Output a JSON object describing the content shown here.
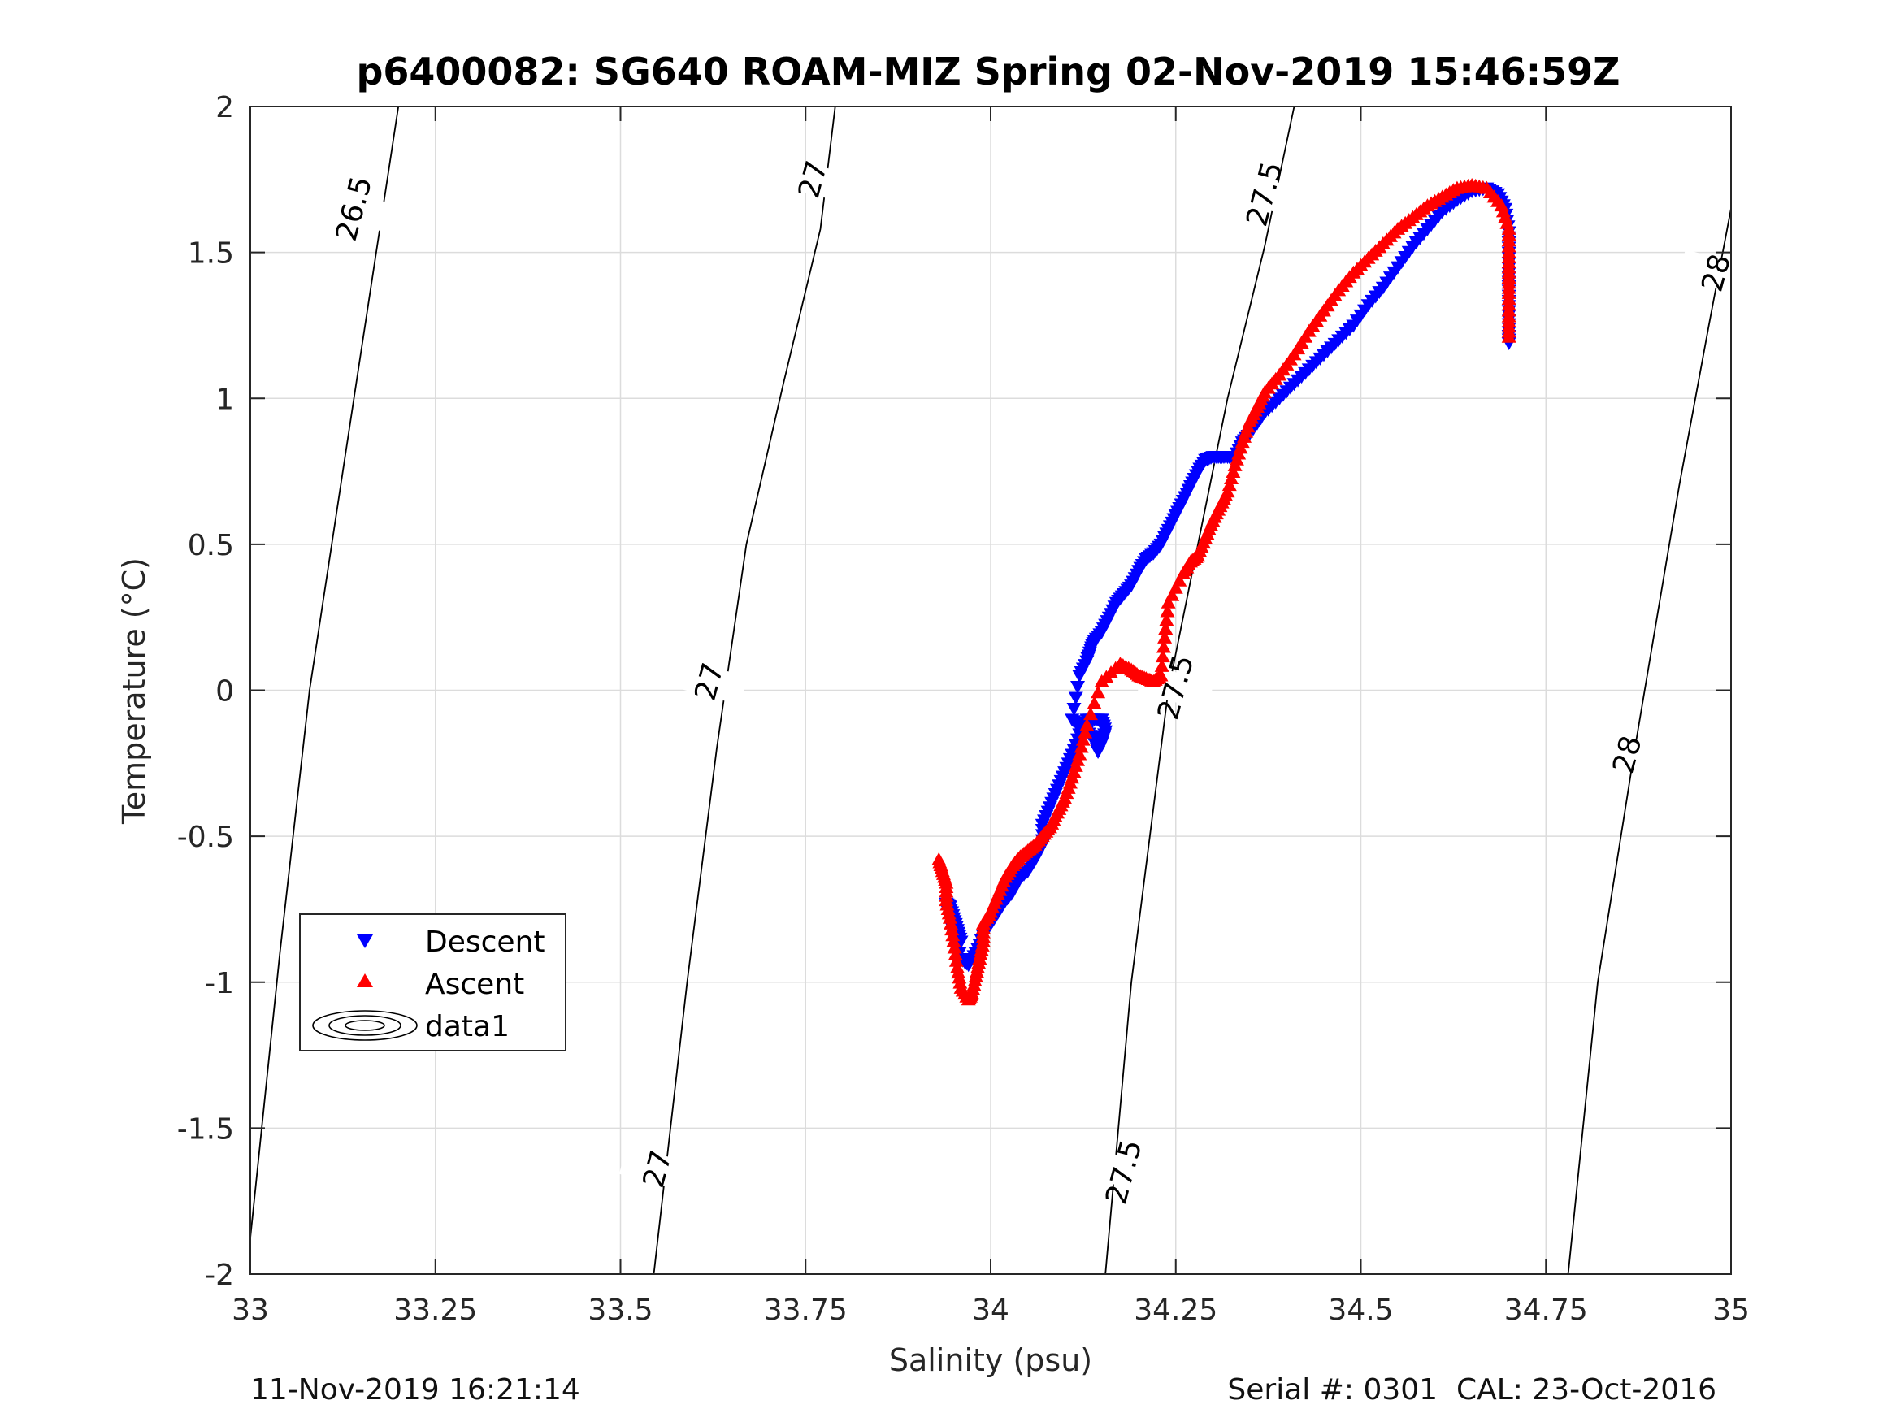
{
  "chart_data": {
    "type": "scatter",
    "title": "p6400082: SG640 ROAM-MIZ Spring 02-Nov-2019 15:46:59Z",
    "xlabel": "Salinity (psu)",
    "ylabel": "Temperature (°C)",
    "xlim": [
      33,
      35
    ],
    "ylim": [
      -2,
      2
    ],
    "xticks": [
      "33",
      "33.25",
      "33.5",
      "33.75",
      "34",
      "34.25",
      "34.5",
      "34.75",
      "35"
    ],
    "yticks": [
      "2",
      "1.5",
      "1",
      "0.5",
      "0",
      "-0.5",
      "-1",
      "-1.5",
      "-2"
    ],
    "grid": true,
    "legend_position": "lower-left",
    "legend": [
      "Descent",
      "Ascent",
      "data1"
    ],
    "colors": {
      "descent": "#0000ff",
      "ascent": "#ff0000",
      "contour": "#000000",
      "grid": "#dcdcdc"
    },
    "density_contours": [
      {
        "sigma": "26.5",
        "points": [
          [
            32.995,
            -2.0
          ],
          [
            33.04,
            -0.9
          ],
          [
            33.08,
            0.0
          ],
          [
            33.14,
            1.0
          ],
          [
            33.17,
            1.5
          ],
          [
            33.2,
            2.0
          ]
        ]
      },
      {
        "sigma": "27",
        "points": [
          [
            33.545,
            -2.0
          ],
          [
            33.59,
            -1.0
          ],
          [
            33.63,
            -0.2
          ],
          [
            33.67,
            0.5
          ],
          [
            33.72,
            1.05
          ],
          [
            33.77,
            1.58
          ],
          [
            33.79,
            2.0
          ]
        ]
      },
      {
        "sigma": "27.5",
        "points": [
          [
            34.155,
            -2.0
          ],
          [
            34.19,
            -1.0
          ],
          [
            34.24,
            0.0
          ],
          [
            34.32,
            1.0
          ],
          [
            34.37,
            1.52
          ],
          [
            34.41,
            2.0
          ]
        ]
      },
      {
        "sigma": "28",
        "points": [
          [
            34.78,
            -2.0
          ],
          [
            34.82,
            -1.0
          ],
          [
            34.87,
            -0.2
          ],
          [
            34.93,
            0.7
          ],
          [
            34.97,
            1.25
          ],
          [
            35.0,
            1.65
          ]
        ]
      }
    ],
    "contour_labels": [
      {
        "text": "26.5",
        "x": 33.14,
        "y": 1.65
      },
      {
        "text": "27",
        "x": 33.76,
        "y": 1.75
      },
      {
        "text": "27",
        "x": 33.62,
        "y": 0.03
      },
      {
        "text": "27",
        "x": 33.55,
        "y": -1.64
      },
      {
        "text": "27.5",
        "x": 34.37,
        "y": 1.7
      },
      {
        "text": "27.5",
        "x": 34.25,
        "y": 0.01
      },
      {
        "text": "27.5",
        "x": 34.18,
        "y": -1.65
      },
      {
        "text": "28",
        "x": 34.98,
        "y": 1.43
      },
      {
        "text": "28",
        "x": 34.86,
        "y": -0.22
      }
    ],
    "series": [
      {
        "name": "Descent",
        "marker": "triangle-down",
        "x": [
          33.96,
          33.955,
          33.95,
          33.945,
          33.94,
          33.95,
          33.96,
          33.97,
          33.98,
          33.99,
          34.0,
          34.01,
          34.02,
          34.03,
          34.04,
          34.05,
          34.06,
          34.07,
          34.07,
          34.08,
          34.09,
          34.1,
          34.11,
          34.12,
          34.13,
          34.14,
          34.15,
          34.155,
          34.15,
          34.145,
          34.14,
          34.13,
          34.12,
          34.11,
          34.12,
          34.13,
          34.135,
          34.14,
          34.15,
          34.16,
          34.17,
          34.18,
          34.19,
          34.2,
          34.21,
          34.22,
          34.23,
          34.24,
          34.25,
          34.26,
          34.27,
          34.28,
          34.29,
          34.3,
          34.31,
          34.32,
          34.33,
          34.34,
          34.35,
          34.37,
          34.39,
          34.41,
          34.43,
          34.45,
          34.47,
          34.49,
          34.51,
          34.53,
          34.55,
          34.57,
          34.59,
          34.61,
          34.63,
          34.65,
          34.67,
          34.685,
          34.695,
          34.7,
          34.7,
          34.7,
          34.7,
          34.7,
          34.7,
          34.7
        ],
        "y": [
          -0.86,
          -0.82,
          -0.78,
          -0.74,
          -0.73,
          -0.84,
          -0.92,
          -0.94,
          -0.9,
          -0.84,
          -0.8,
          -0.76,
          -0.72,
          -0.69,
          -0.64,
          -0.62,
          -0.58,
          -0.53,
          -0.46,
          -0.4,
          -0.34,
          -0.28,
          -0.22,
          -0.15,
          -0.1,
          -0.1,
          -0.1,
          -0.14,
          -0.18,
          -0.21,
          -0.17,
          -0.14,
          -0.12,
          -0.1,
          0.05,
          0.1,
          0.14,
          0.17,
          0.2,
          0.25,
          0.3,
          0.33,
          0.36,
          0.41,
          0.45,
          0.47,
          0.5,
          0.55,
          0.6,
          0.65,
          0.7,
          0.75,
          0.79,
          0.8,
          0.8,
          0.8,
          0.8,
          0.85,
          0.88,
          0.95,
          1.0,
          1.05,
          1.1,
          1.15,
          1.2,
          1.25,
          1.32,
          1.38,
          1.45,
          1.52,
          1.58,
          1.64,
          1.68,
          1.71,
          1.72,
          1.7,
          1.65,
          1.57,
          1.5,
          1.43,
          1.37,
          1.3,
          1.24,
          1.19
        ]
      },
      {
        "name": "Ascent",
        "marker": "triangle-up",
        "x": [
          33.93,
          33.935,
          33.94,
          33.94,
          33.945,
          33.95,
          33.955,
          33.96,
          33.97,
          33.975,
          33.98,
          33.985,
          33.99,
          33.99,
          34.0,
          34.01,
          34.02,
          34.03,
          34.04,
          34.05,
          34.06,
          34.07,
          34.08,
          34.09,
          34.1,
          34.11,
          34.12,
          34.13,
          34.15,
          34.175,
          34.19,
          34.2,
          34.21,
          34.22,
          34.23,
          34.235,
          34.24,
          34.26,
          34.27,
          34.28,
          34.29,
          34.3,
          34.31,
          34.32,
          34.33,
          34.34,
          34.35,
          34.36,
          34.37,
          34.39,
          34.41,
          34.43,
          34.45,
          34.47,
          34.49,
          34.51,
          34.53,
          34.55,
          34.57,
          34.59,
          34.61,
          34.63,
          34.65,
          34.67,
          34.69,
          34.7,
          34.7,
          34.7,
          34.7,
          34.7,
          34.7
        ],
        "y": [
          -0.58,
          -0.62,
          -0.66,
          -0.72,
          -0.78,
          -0.86,
          -0.95,
          -1.02,
          -1.06,
          -1.04,
          -0.98,
          -0.92,
          -0.86,
          -0.8,
          -0.76,
          -0.7,
          -0.64,
          -0.6,
          -0.57,
          -0.55,
          -0.53,
          -0.5,
          -0.47,
          -0.42,
          -0.37,
          -0.3,
          -0.22,
          -0.12,
          0.03,
          0.09,
          0.07,
          0.05,
          0.04,
          0.03,
          0.05,
          0.18,
          0.3,
          0.4,
          0.44,
          0.46,
          0.52,
          0.58,
          0.63,
          0.68,
          0.77,
          0.85,
          0.92,
          0.97,
          1.02,
          1.08,
          1.15,
          1.23,
          1.3,
          1.37,
          1.43,
          1.48,
          1.53,
          1.58,
          1.62,
          1.66,
          1.69,
          1.72,
          1.73,
          1.72,
          1.66,
          1.58,
          1.5,
          1.43,
          1.36,
          1.28,
          1.21
        ]
      }
    ]
  },
  "footer": {
    "timestamp": "11-Nov-2019 16:21:14",
    "serial": "Serial #: 0301  CAL: 23-Oct-2016"
  }
}
